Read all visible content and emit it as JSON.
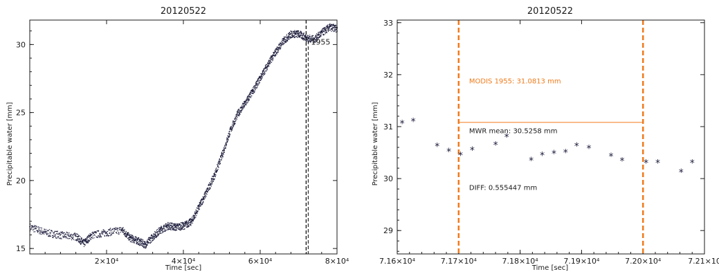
{
  "chart_data": [
    {
      "type": "scatter",
      "title": "20120522",
      "xlabel": "Time [sec]",
      "ylabel": "Precipitable water [mm]",
      "xlim": [
        0,
        80000
      ],
      "ylim": [
        14.6,
        31.8
      ],
      "xticks": [
        20000,
        40000,
        60000,
        80000
      ],
      "xtick_labels": [
        "2×10⁴",
        "4×10⁴",
        "6×10⁴",
        "8×10⁴"
      ],
      "yticks": [
        15,
        20,
        25,
        30
      ],
      "ytick_labels": [
        "15",
        "20",
        "25",
        "30"
      ],
      "series": [
        {
          "x": [
            0,
            4000,
            8000,
            12000,
            14000,
            16000,
            20000,
            24000,
            26000,
            28000,
            30000,
            32000,
            34000,
            36000,
            38000,
            40000,
            42000,
            44000,
            46000,
            48000,
            50000,
            52000,
            54000,
            56000,
            58000,
            60000,
            62000,
            64000,
            66000,
            68000,
            70000,
            72000,
            74000,
            76000,
            78000,
            80000
          ],
          "y": [
            16.6,
            16.2,
            16.0,
            15.9,
            15.4,
            16.0,
            16.2,
            16.4,
            15.8,
            15.6,
            15.3,
            15.9,
            16.4,
            16.7,
            16.6,
            16.7,
            17.0,
            18.1,
            19.2,
            20.4,
            21.9,
            23.6,
            24.9,
            25.7,
            26.6,
            27.6,
            28.6,
            29.5,
            30.3,
            30.8,
            30.8,
            30.5,
            30.4,
            30.9,
            31.3,
            31.2
          ]
        }
      ],
      "vline": {
        "x": 71955,
        "label": "1955",
        "color": "#000000"
      },
      "marker": "small dots",
      "color": "#1a1a3a"
    },
    {
      "type": "scatter",
      "title": "20120522",
      "xlabel": "Time [sec]",
      "ylabel": "Precipitable water [mm]",
      "xlim": [
        71600,
        72100
      ],
      "ylim": [
        28.55,
        33.05
      ],
      "xticks": [
        71600,
        71700,
        71800,
        71900,
        72000,
        72100
      ],
      "xtick_labels": [
        "7.16×10⁴",
        "7.17×10⁴",
        "7.18×10⁴",
        "7.19×10⁴",
        "7.20×10⁴",
        "7.21×10"
      ],
      "yticks": [
        29,
        30,
        31,
        32,
        33
      ],
      "ytick_labels": [
        "29",
        "30",
        "31",
        "32",
        "33"
      ],
      "series": [
        {
          "x": [
            71608,
            71626,
            71665,
            71684,
            71703,
            71722,
            71760,
            71778,
            71818,
            71836,
            71855,
            71874,
            71892,
            71912,
            71948,
            71966,
            72005,
            72024,
            72062,
            72080
          ],
          "y": [
            31.06,
            31.1,
            30.62,
            30.52,
            30.45,
            30.55,
            30.65,
            30.8,
            30.35,
            30.45,
            30.48,
            30.5,
            30.63,
            30.58,
            30.43,
            30.34,
            30.3,
            30.3,
            30.12,
            30.3
          ]
        }
      ],
      "marker": "asterisk",
      "color": "#1a1a3a",
      "vlines": [
        {
          "x": 71700,
          "color": "#f07a1a"
        },
        {
          "x": 72000,
          "color": "#f07a1a"
        }
      ],
      "hline": {
        "y": 31.0813,
        "x0": 71700,
        "x1": 72000,
        "color": "#f07a1a"
      },
      "annotations": [
        {
          "text": "MODIS 1955: 31.0813 mm",
          "x": 71717,
          "y": 31.83,
          "color": "#f07a1a"
        },
        {
          "text": "MWR mean: 30.5258 mm",
          "x": 71717,
          "y": 30.87,
          "color": "#1a1a1a"
        },
        {
          "text": "DIFF: 0.555447 mm",
          "x": 71717,
          "y": 29.78,
          "color": "#1a1a1a"
        }
      ]
    }
  ]
}
